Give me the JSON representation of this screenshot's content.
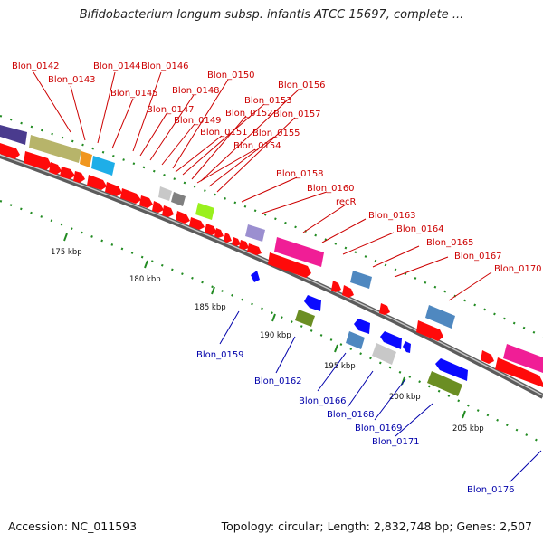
{
  "title": "Bifidobacterium longum subsp. infantis ATCC 15697, complete ...",
  "footer": {
    "accession": "Accession: NC_011593",
    "summary": "Topology: circular; Length: 2,832,748 bp; Genes: 2,507"
  },
  "colors": {
    "forward_label": "#cc0000",
    "reverse_label": "#0000aa",
    "backbone": "#808080",
    "gc_dots": "#228b22"
  },
  "ticks": [
    "175 kbp",
    "180 kbp",
    "185 kbp",
    "190 kbp",
    "195 kbp",
    "200 kbp",
    "205 kbp"
  ],
  "forward_labels": [
    "Blon_0142",
    "Blon_0143",
    "Blon_0144",
    "Blon_0146",
    "Blon_0145",
    "Blon_0150",
    "Blon_0148",
    "Blon_0156",
    "Blon_0147",
    "Blon_0153",
    "Blon_0149",
    "Blon_0152",
    "Blon_0157",
    "Blon_0151",
    "Blon_0155",
    "Blon_0154",
    "Blon_0158",
    "Blon_0160",
    "recR",
    "Blon_0163",
    "Blon_0164",
    "Blon_0165",
    "Blon_0167",
    "Blon_0170"
  ],
  "reverse_labels": [
    "Blon_0159",
    "Blon_0162",
    "Blon_0166",
    "Blon_0168",
    "Blon_0169",
    "Blon_0171",
    "Blon_0176"
  ]
}
